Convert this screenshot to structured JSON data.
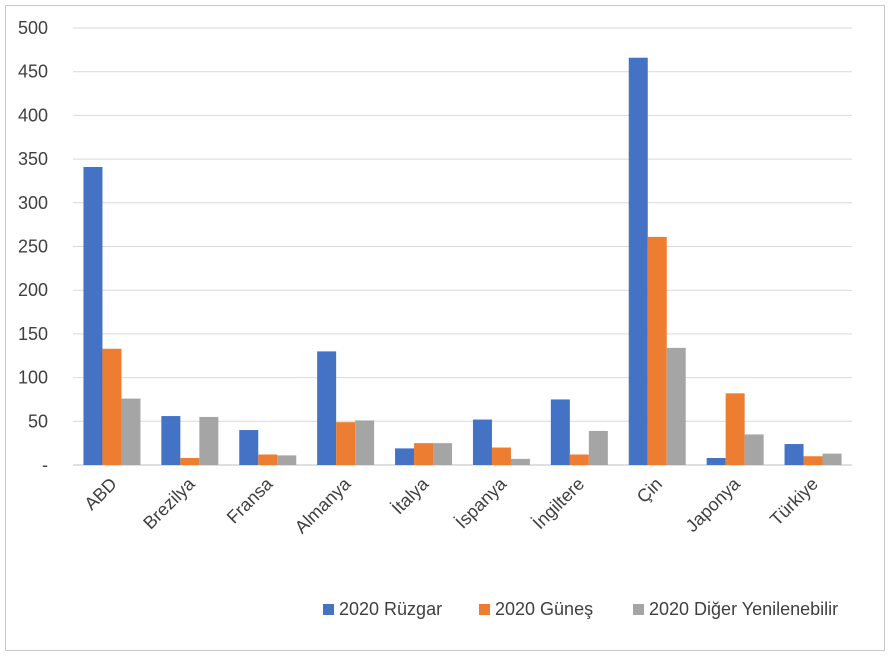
{
  "chart_data": {
    "type": "bar",
    "categories": [
      "ABD",
      "Brezilya",
      "Fransa",
      "Almanya",
      "İtalya",
      "İspanya",
      "İngiltere",
      "Çin",
      "Japonya",
      "Türkiye"
    ],
    "series": [
      {
        "name": "2020 Rüzgar",
        "color": "#4472C4",
        "values": [
          341,
          56,
          40,
          130,
          19,
          52,
          75,
          466,
          8,
          24
        ]
      },
      {
        "name": "2020 Güneş",
        "color": "#ED7D31",
        "values": [
          133,
          8,
          12,
          49,
          25,
          20,
          12,
          261,
          82,
          10
        ]
      },
      {
        "name": "2020 Diğer Yenilenebilir",
        "color": "#A5A5A5",
        "values": [
          76,
          55,
          11,
          51,
          25,
          7,
          39,
          134,
          35,
          13
        ]
      }
    ],
    "ylim": [
      0,
      500
    ],
    "yticks": [
      {
        "value": 0,
        "label": "-"
      },
      {
        "value": 50,
        "label": "50"
      },
      {
        "value": 100,
        "label": "100"
      },
      {
        "value": 150,
        "label": "150"
      },
      {
        "value": 200,
        "label": "200"
      },
      {
        "value": 250,
        "label": "250"
      },
      {
        "value": 300,
        "label": "300"
      },
      {
        "value": 350,
        "label": "350"
      },
      {
        "value": 400,
        "label": "400"
      },
      {
        "value": 450,
        "label": "450"
      },
      {
        "value": 500,
        "label": "500"
      }
    ],
    "grid": true,
    "legend": "bottom-right",
    "xlabel": "",
    "ylabel": "",
    "title": ""
  }
}
